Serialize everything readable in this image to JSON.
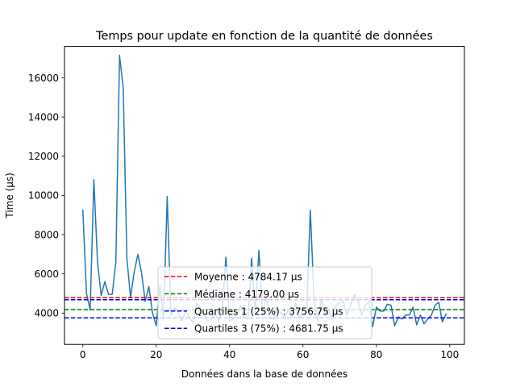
{
  "chart_data": {
    "type": "line",
    "title": "Temps pour update en fonction de la quantité de données",
    "xlabel": "Données dans la base de données",
    "ylabel": "Time (µs)",
    "xlim": [
      -5,
      104
    ],
    "ylim": [
      2400,
      17600
    ],
    "x_ticks": [
      0,
      20,
      40,
      60,
      80,
      100
    ],
    "y_ticks": [
      4000,
      6000,
      8000,
      10000,
      12000,
      14000,
      16000
    ],
    "x_tick_labels": [
      "0",
      "20",
      "40",
      "60",
      "80",
      "100"
    ],
    "y_tick_labels": [
      "4000",
      "6000",
      "8000",
      "10000",
      "12000",
      "14000",
      "16000"
    ],
    "grid": false,
    "legend_position": "bottom-center",
    "series": [
      {
        "color": "#1f77b4",
        "x": [
          0,
          1,
          2,
          3,
          4,
          5,
          6,
          7,
          8,
          9,
          10,
          11,
          12,
          13,
          14,
          15,
          16,
          17,
          18,
          19,
          20,
          21,
          22,
          23,
          24,
          25,
          26,
          27,
          28,
          29,
          30,
          31,
          32,
          33,
          34,
          35,
          36,
          37,
          38,
          39,
          40,
          41,
          42,
          43,
          44,
          45,
          46,
          47,
          48,
          49,
          50,
          51,
          52,
          53,
          54,
          55,
          56,
          57,
          58,
          59,
          60,
          61,
          62,
          63,
          64,
          65,
          66,
          67,
          68,
          69,
          70,
          71,
          72,
          73,
          74,
          75,
          76,
          77,
          78,
          79,
          80,
          81,
          82,
          83,
          84,
          85,
          86,
          87,
          88,
          89,
          90,
          91,
          92,
          93,
          94,
          95,
          96,
          97,
          98,
          99
        ],
        "y": [
          9250,
          5000,
          4150,
          10800,
          6600,
          4900,
          5600,
          4950,
          4950,
          6600,
          17150,
          15500,
          6800,
          4800,
          6100,
          7000,
          6050,
          4600,
          5350,
          4000,
          3350,
          5400,
          3700,
          9950,
          3900,
          4300,
          4000,
          3600,
          4100,
          3800,
          3500,
          4500,
          4200,
          3900,
          3600,
          3700,
          4000,
          3600,
          4200,
          6850,
          3600,
          3700,
          3900,
          4400,
          3800,
          3700,
          6800,
          4000,
          7200,
          3900,
          4800,
          3800,
          3700,
          4300,
          4000,
          3700,
          4200,
          3800,
          4500,
          3700,
          4300,
          4000,
          9250,
          4800,
          3600,
          4700,
          4000,
          4200,
          3700,
          4400,
          4500,
          4600,
          3900,
          4400,
          4950,
          4600,
          3900,
          4400,
          4600,
          3300,
          4300,
          4100,
          4100,
          4450,
          4400,
          3350,
          3800,
          3700,
          3900,
          3900,
          4300,
          3400,
          3900,
          3450,
          3700,
          3900,
          4400,
          4550,
          3550,
          3950
        ]
      }
    ],
    "hlines": [
      {
        "label": "Moyenne : 4784.17 µs",
        "value": 4784.17,
        "color": "#ff0000"
      },
      {
        "label": "Médiane : 4179.00 µs",
        "value": 4179.0,
        "color": "#008000"
      },
      {
        "label": "Quartiles 1 (25%) : 3756.75 µs",
        "value": 3756.75,
        "color": "#0000ff"
      },
      {
        "label": "Quartiles 3 (75%) : 4681.75 µs",
        "value": 4681.75,
        "color": "#0000cc"
      }
    ]
  }
}
